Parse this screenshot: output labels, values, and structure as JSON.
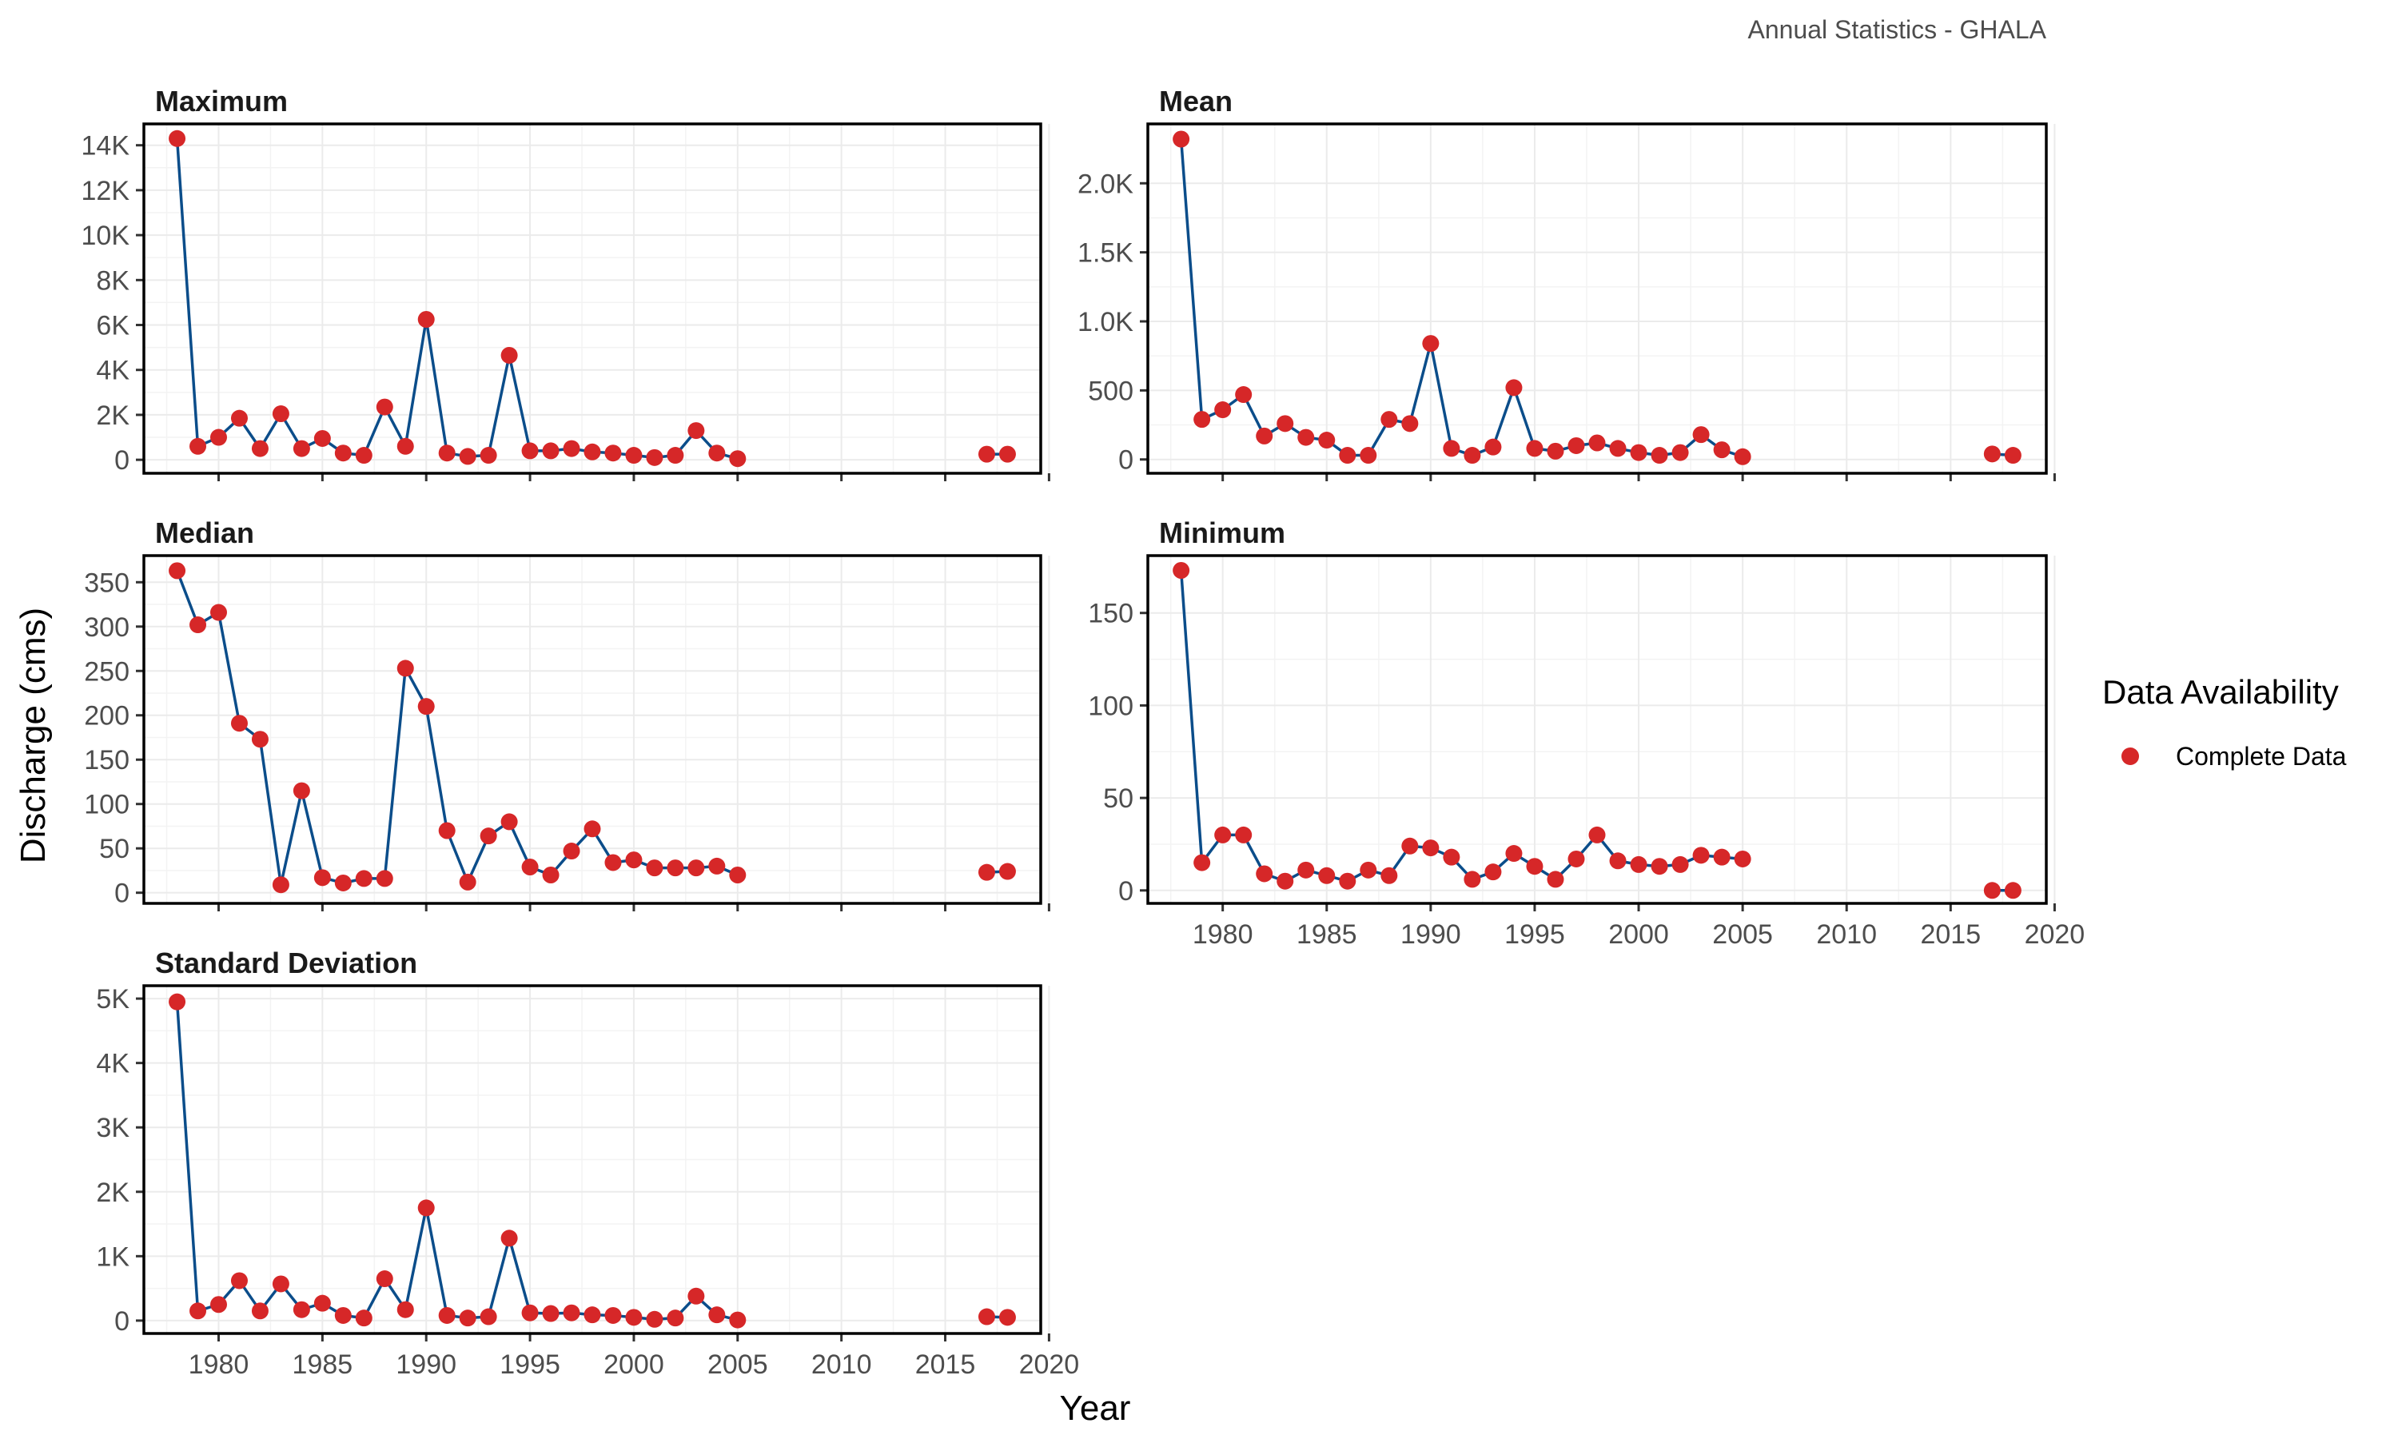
{
  "caption": "Annual Statistics - GHALA",
  "y_axis_title": "Discharge (cms)",
  "x_axis_title": "Year",
  "legend": {
    "title": "Data Availability",
    "items": [
      {
        "label": "Complete Data",
        "color": "#d62728"
      }
    ]
  },
  "colors": {
    "line": "#0b4d8a",
    "point": "#d62728"
  },
  "chart_data": [
    {
      "type": "line",
      "title": "Maximum",
      "x": [
        1978,
        1979,
        1980,
        1981,
        1982,
        1983,
        1984,
        1985,
        1986,
        1987,
        1988,
        1989,
        1990,
        1991,
        1992,
        1993,
        1994,
        1995,
        1996,
        1997,
        1998,
        1999,
        2000,
        2001,
        2002,
        2003,
        2004,
        2005,
        2017,
        2018
      ],
      "y": [
        14300,
        600,
        1000,
        1850,
        500,
        2050,
        500,
        950,
        300,
        200,
        2350,
        600,
        6250,
        300,
        150,
        200,
        4650,
        400,
        400,
        500,
        350,
        300,
        200,
        100,
        200,
        1300,
        300,
        50,
        250,
        250
      ],
      "yticks": [
        0,
        2000,
        4000,
        6000,
        8000,
        10000,
        12000,
        14000
      ],
      "ytick_labels": [
        "0",
        "2K",
        "4K",
        "6K",
        "8K",
        "10K",
        "12K",
        "14K"
      ],
      "ylim": [
        -600,
        14950
      ],
      "xlim": [
        1976.4,
        2019.6
      ],
      "xticks": [
        1980,
        1985,
        1990,
        1995,
        2000,
        2005,
        2010,
        2015,
        2020
      ],
      "xtick_labels": []
    },
    {
      "type": "line",
      "title": "Mean",
      "x": [
        1978,
        1979,
        1980,
        1981,
        1982,
        1983,
        1984,
        1985,
        1986,
        1987,
        1988,
        1989,
        1990,
        1991,
        1992,
        1993,
        1994,
        1995,
        1996,
        1997,
        1998,
        1999,
        2000,
        2001,
        2002,
        2003,
        2004,
        2005,
        2017,
        2018
      ],
      "y": [
        2320,
        290,
        360,
        470,
        170,
        260,
        160,
        140,
        30,
        30,
        290,
        260,
        840,
        80,
        30,
        90,
        520,
        80,
        60,
        100,
        120,
        80,
        50,
        30,
        50,
        180,
        70,
        20,
        40,
        30
      ],
      "yticks": [
        0,
        500,
        1000,
        1500,
        2000
      ],
      "ytick_labels": [
        "0",
        "500",
        "1.0K",
        "1.5K",
        "2.0K"
      ],
      "ylim": [
        -100,
        2430
      ],
      "xlim": [
        1976.4,
        2019.6
      ],
      "xticks": [
        1980,
        1985,
        1990,
        1995,
        2000,
        2005,
        2010,
        2015,
        2020
      ],
      "xtick_labels": []
    },
    {
      "type": "line",
      "title": "Median",
      "x": [
        1978,
        1979,
        1980,
        1981,
        1982,
        1983,
        1984,
        1985,
        1986,
        1987,
        1988,
        1989,
        1990,
        1991,
        1992,
        1993,
        1994,
        1995,
        1996,
        1997,
        1998,
        1999,
        2000,
        2001,
        2002,
        2003,
        2004,
        2005,
        2017,
        2018
      ],
      "y": [
        363,
        302,
        316,
        191,
        173,
        9,
        115,
        17,
        11,
        16,
        16,
        253,
        210,
        70,
        12,
        64,
        80,
        29,
        20,
        47,
        72,
        34,
        37,
        28,
        28,
        28,
        30,
        20,
        23,
        24
      ],
      "yticks": [
        0,
        50,
        100,
        150,
        200,
        250,
        300,
        350
      ],
      "ytick_labels": [
        "0",
        "50",
        "100",
        "150",
        "200",
        "250",
        "300",
        "350"
      ],
      "ylim": [
        -12,
        380
      ],
      "xlim": [
        1976.4,
        2019.6
      ],
      "xticks": [
        1980,
        1985,
        1990,
        1995,
        2000,
        2005,
        2010,
        2015,
        2020
      ],
      "xtick_labels": []
    },
    {
      "type": "line",
      "title": "Minimum",
      "x": [
        1978,
        1979,
        1980,
        1981,
        1982,
        1983,
        1984,
        1985,
        1986,
        1987,
        1988,
        1989,
        1990,
        1991,
        1992,
        1993,
        1994,
        1995,
        1996,
        1997,
        1998,
        1999,
        2000,
        2001,
        2002,
        2003,
        2004,
        2005,
        2017,
        2018
      ],
      "y": [
        173,
        15,
        30,
        30,
        9,
        5,
        11,
        8,
        5,
        11,
        8,
        24,
        23,
        18,
        6,
        10,
        20,
        13,
        6,
        17,
        30,
        16,
        14,
        13,
        14,
        19,
        18,
        17,
        0,
        0
      ],
      "yticks": [
        0,
        50,
        100,
        150
      ],
      "ytick_labels": [
        "0",
        "50",
        "100",
        "150"
      ],
      "ylim": [
        -7,
        181
      ],
      "xlim": [
        1976.4,
        2019.6
      ],
      "xticks": [
        1980,
        1985,
        1990,
        1995,
        2000,
        2005,
        2010,
        2015,
        2020
      ],
      "xtick_labels": [
        "1980",
        "1985",
        "1990",
        "1995",
        "2000",
        "2005",
        "2010",
        "2015",
        "2020"
      ]
    },
    {
      "type": "line",
      "title": "Standard Deviation",
      "x": [
        1978,
        1979,
        1980,
        1981,
        1982,
        1983,
        1984,
        1985,
        1986,
        1987,
        1988,
        1989,
        1990,
        1991,
        1992,
        1993,
        1994,
        1995,
        1996,
        1997,
        1998,
        1999,
        2000,
        2001,
        2002,
        2003,
        2004,
        2005,
        2017,
        2018
      ],
      "y": [
        4950,
        150,
        250,
        620,
        150,
        570,
        170,
        270,
        80,
        40,
        650,
        170,
        1750,
        80,
        40,
        60,
        1280,
        120,
        110,
        120,
        90,
        80,
        50,
        20,
        40,
        380,
        90,
        10,
        60,
        50
      ],
      "yticks": [
        0,
        1000,
        2000,
        3000,
        4000,
        5000
      ],
      "ytick_labels": [
        "0",
        "1K",
        "2K",
        "3K",
        "4K",
        "5K"
      ],
      "ylim": [
        -200,
        5200
      ],
      "xlim": [
        1976.4,
        2019.6
      ],
      "xticks": [
        1980,
        1985,
        1990,
        1995,
        2000,
        2005,
        2010,
        2015,
        2020
      ],
      "xtick_labels": [
        "1980",
        "1985",
        "1990",
        "1995",
        "2000",
        "2005",
        "2010",
        "2015",
        "2020"
      ]
    }
  ]
}
